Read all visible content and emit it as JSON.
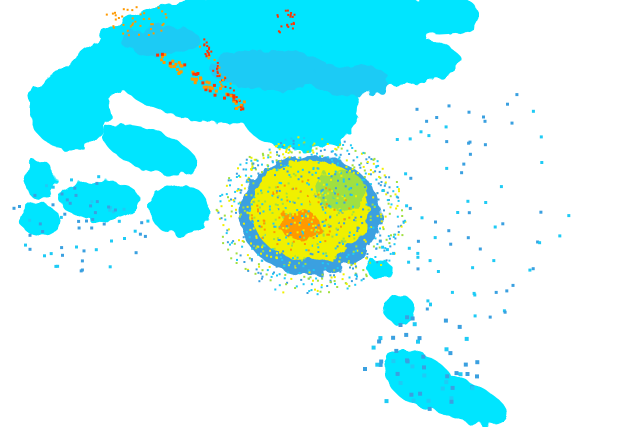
{
  "map": {
    "type": "weather-radar-reflectivity",
    "background_color": "#ffffff",
    "palette": {
      "light": "#00e5ff",
      "light_alt": "#1ecbf5",
      "moderate": "#3aa0e0",
      "strong": "#f0f000",
      "strong_alt": "#a0e040",
      "heavy": "#ff9900",
      "intense": "#ff3300"
    }
  }
}
